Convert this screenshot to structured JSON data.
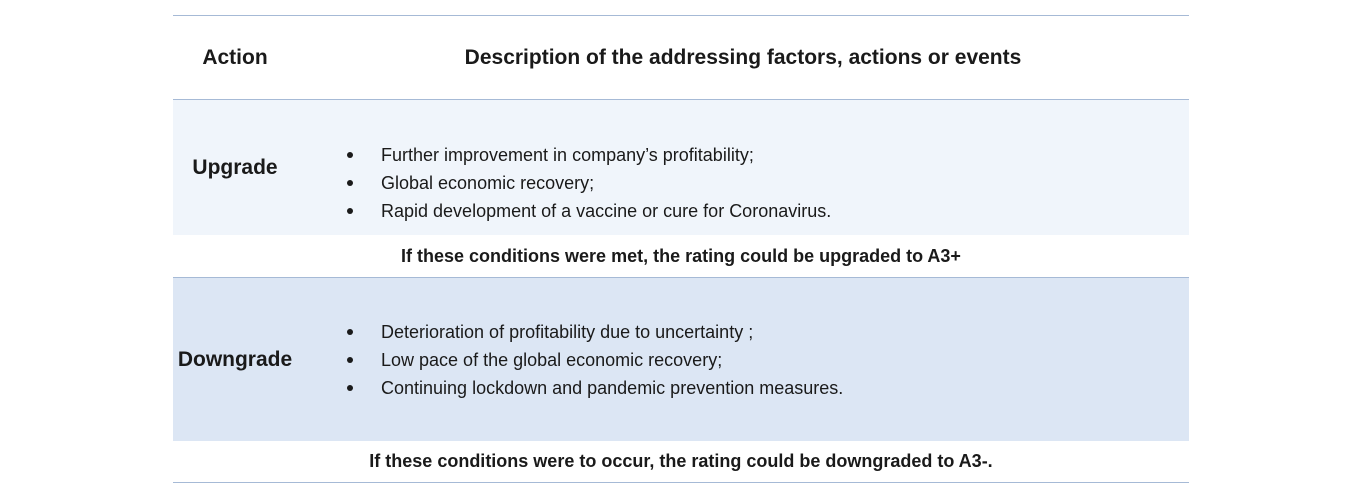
{
  "header": {
    "action": "Action",
    "description": "Description of the addressing factors, actions or events"
  },
  "rows": [
    {
      "action": "Upgrade",
      "bullets": [
        "Further improvement in company’s profitability;",
        "Global economic recovery;",
        "Rapid development of a vaccine or cure for Coronavirus."
      ],
      "condition": "If these conditions were met, the rating could be upgraded to A3+"
    },
    {
      "action": "Downgrade",
      "bullets": [
        "Deterioration of profitability due to uncertainty ;",
        "Low pace of the global economic recovery;",
        "Continuing lockdown and pandemic prevention measures."
      ],
      "condition": "If these conditions were to occur, the rating could be downgraded to A3-."
    }
  ],
  "colors": {
    "rule": "#a6bad6",
    "upgrade_band": "#f0f5fb",
    "downgrade_band": "#dce6f4",
    "text": "#1a1a1a"
  }
}
